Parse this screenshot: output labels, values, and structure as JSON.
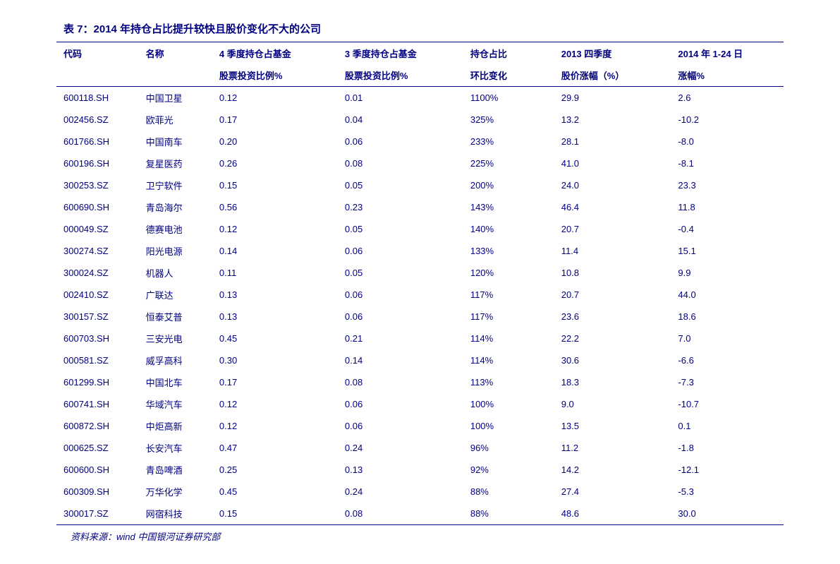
{
  "title": "表 7：2014 年持仓占比提升较快且股价变化不大的公司",
  "source": "资料来源：wind 中国银河证券研究部",
  "headers": {
    "row1": {
      "code": "代码",
      "name": "名称",
      "q4": "4 季度持仓占基金",
      "q3": "3 季度持仓占基金",
      "change": "持仓占比",
      "y2013": "2013 四季度",
      "y2014": "2014 年 1-24 日"
    },
    "row2": {
      "code": "",
      "name": "",
      "q4": "股票投资比例%",
      "q3": "股票投资比例%",
      "change": "环比变化",
      "y2013": "股价涨幅（%）",
      "y2014": "涨幅%"
    }
  },
  "rows": [
    {
      "code": "600118.SH",
      "name": "中国卫星",
      "q4": "0.12",
      "q3": "0.01",
      "change": "1100%",
      "y2013": "29.9",
      "y2014": "2.6"
    },
    {
      "code": "002456.SZ",
      "name": "欧菲光",
      "q4": "0.17",
      "q3": "0.04",
      "change": "325%",
      "y2013": "13.2",
      "y2014": "-10.2"
    },
    {
      "code": "601766.SH",
      "name": "中国南车",
      "q4": "0.20",
      "q3": "0.06",
      "change": "233%",
      "y2013": "28.1",
      "y2014": "-8.0"
    },
    {
      "code": "600196.SH",
      "name": "复星医药",
      "q4": "0.26",
      "q3": "0.08",
      "change": "225%",
      "y2013": "41.0",
      "y2014": "-8.1"
    },
    {
      "code": "300253.SZ",
      "name": "卫宁软件",
      "q4": "0.15",
      "q3": "0.05",
      "change": "200%",
      "y2013": "24.0",
      "y2014": "23.3"
    },
    {
      "code": "600690.SH",
      "name": "青岛海尔",
      "q4": "0.56",
      "q3": "0.23",
      "change": "143%",
      "y2013": "46.4",
      "y2014": "11.8"
    },
    {
      "code": "000049.SZ",
      "name": "德赛电池",
      "q4": "0.12",
      "q3": "0.05",
      "change": "140%",
      "y2013": "20.7",
      "y2014": "-0.4"
    },
    {
      "code": "300274.SZ",
      "name": "阳光电源",
      "q4": "0.14",
      "q3": "0.06",
      "change": "133%",
      "y2013": "11.4",
      "y2014": "15.1"
    },
    {
      "code": "300024.SZ",
      "name": "机器人",
      "q4": "0.11",
      "q3": "0.05",
      "change": "120%",
      "y2013": "10.8",
      "y2014": "9.9"
    },
    {
      "code": "002410.SZ",
      "name": "广联达",
      "q4": "0.13",
      "q3": "0.06",
      "change": "117%",
      "y2013": "20.7",
      "y2014": "44.0"
    },
    {
      "code": "300157.SZ",
      "name": "恒泰艾普",
      "q4": "0.13",
      "q3": "0.06",
      "change": "117%",
      "y2013": "23.6",
      "y2014": "18.6"
    },
    {
      "code": "600703.SH",
      "name": "三安光电",
      "q4": "0.45",
      "q3": "0.21",
      "change": "114%",
      "y2013": "22.2",
      "y2014": "7.0"
    },
    {
      "code": "000581.SZ",
      "name": "威孚高科",
      "q4": "0.30",
      "q3": "0.14",
      "change": "114%",
      "y2013": "30.6",
      "y2014": "-6.6"
    },
    {
      "code": "601299.SH",
      "name": "中国北车",
      "q4": "0.17",
      "q3": "0.08",
      "change": "113%",
      "y2013": "18.3",
      "y2014": "-7.3"
    },
    {
      "code": "600741.SH",
      "name": "华域汽车",
      "q4": "0.12",
      "q3": "0.06",
      "change": "100%",
      "y2013": "9.0",
      "y2014": "-10.7"
    },
    {
      "code": "600872.SH",
      "name": "中炬高新",
      "q4": "0.12",
      "q3": "0.06",
      "change": "100%",
      "y2013": "13.5",
      "y2014": "0.1"
    },
    {
      "code": "000625.SZ",
      "name": "长安汽车",
      "q4": "0.47",
      "q3": "0.24",
      "change": "96%",
      "y2013": "11.2",
      "y2014": "-1.8"
    },
    {
      "code": "600600.SH",
      "name": "青岛啤酒",
      "q4": "0.25",
      "q3": "0.13",
      "change": "92%",
      "y2013": "14.2",
      "y2014": "-12.1"
    },
    {
      "code": "600309.SH",
      "name": "万华化学",
      "q4": "0.45",
      "q3": "0.24",
      "change": "88%",
      "y2013": "27.4",
      "y2014": "-5.3"
    },
    {
      "code": "300017.SZ",
      "name": "网宿科技",
      "q4": "0.15",
      "q3": "0.08",
      "change": "88%",
      "y2013": "48.6",
      "y2014": "30.0"
    }
  ],
  "style": {
    "text_color": "#000080",
    "border_color": "#000080",
    "background_color": "#ffffff",
    "title_fontsize": 15,
    "header_fontsize": 13,
    "cell_fontsize": 13,
    "column_widths": {
      "code": 95,
      "name": 85,
      "q4": 145,
      "q3": 145,
      "change": 105,
      "y2013": 135,
      "y2014": 130
    }
  }
}
